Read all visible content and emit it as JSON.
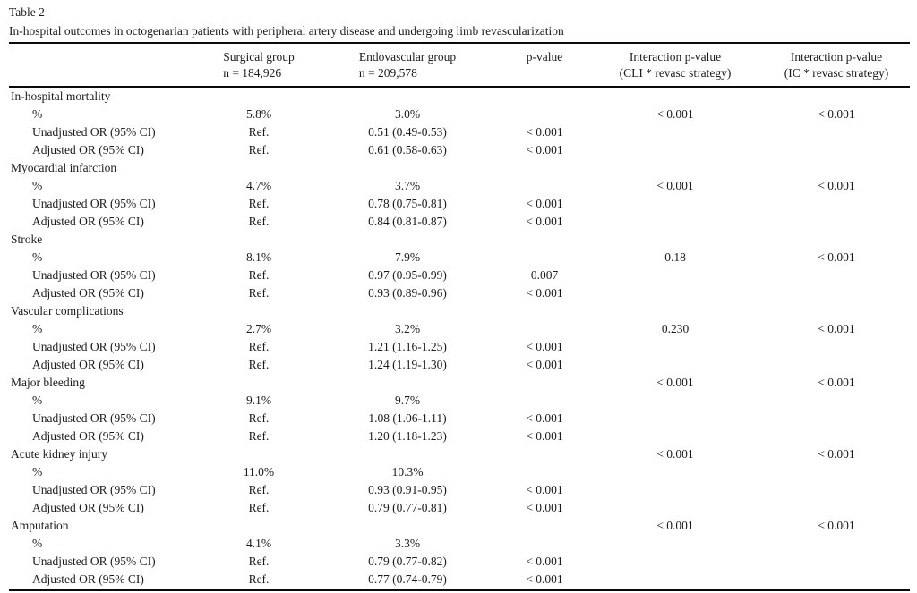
{
  "table": {
    "label": "Table 2",
    "caption": "In-hospital outcomes in octogenarian patients with peripheral artery disease and undergoing limb revascularization",
    "columns": [
      {
        "line1": "",
        "line2": ""
      },
      {
        "line1": "Surgical group",
        "line2": "n = 184,926"
      },
      {
        "line1": "Endovascular group",
        "line2": "n = 209,578"
      },
      {
        "line1": "p-value",
        "line2": ""
      },
      {
        "line1": "Interaction p-value",
        "line2": "(CLI * revasc strategy)"
      },
      {
        "line1": "Interaction p-value",
        "line2": "(IC * revasc strategy)"
      }
    ],
    "rows": [
      {
        "label": "In-hospital mortality",
        "indent": false,
        "cells": [
          "",
          "",
          "",
          "",
          ""
        ]
      },
      {
        "label": "%",
        "indent": true,
        "cells": [
          "5.8%",
          "3.0%",
          "",
          "< 0.001",
          "< 0.001"
        ]
      },
      {
        "label": "Unadjusted OR (95% CI)",
        "indent": true,
        "cells": [
          "Ref.",
          "0.51 (0.49-0.53)",
          "< 0.001",
          "",
          ""
        ]
      },
      {
        "label": "Adjusted OR (95% CI)",
        "indent": true,
        "cells": [
          "Ref.",
          "0.61 (0.58-0.63)",
          "< 0.001",
          "",
          ""
        ]
      },
      {
        "label": "Myocardial infarction",
        "indent": false,
        "cells": [
          "",
          "",
          "",
          "",
          ""
        ]
      },
      {
        "label": "%",
        "indent": true,
        "cells": [
          "4.7%",
          "3.7%",
          "",
          "< 0.001",
          "< 0.001"
        ]
      },
      {
        "label": "Unadjusted OR (95% CI)",
        "indent": true,
        "cells": [
          "Ref.",
          "0.78 (0.75-0.81)",
          "< 0.001",
          "",
          ""
        ]
      },
      {
        "label": "Adjusted OR (95% CI)",
        "indent": true,
        "cells": [
          "Ref.",
          "0.84 (0.81-0.87)",
          "< 0.001",
          "",
          ""
        ]
      },
      {
        "label": "Stroke",
        "indent": false,
        "cells": [
          "",
          "",
          "",
          "",
          ""
        ]
      },
      {
        "label": "%",
        "indent": true,
        "cells": [
          "8.1%",
          "7.9%",
          "",
          "0.18",
          "< 0.001"
        ]
      },
      {
        "label": "Unadjusted OR (95% CI)",
        "indent": true,
        "cells": [
          "Ref.",
          "0.97 (0.95-0.99)",
          "0.007",
          "",
          ""
        ]
      },
      {
        "label": "Adjusted OR (95% CI)",
        "indent": true,
        "cells": [
          "Ref.",
          "0.93 (0.89-0.96)",
          "< 0.001",
          "",
          ""
        ]
      },
      {
        "label": "Vascular complications",
        "indent": false,
        "cells": [
          "",
          "",
          "",
          "",
          ""
        ]
      },
      {
        "label": "%",
        "indent": true,
        "cells": [
          "2.7%",
          "3.2%",
          "",
          "0.230",
          "< 0.001"
        ]
      },
      {
        "label": "Unadjusted OR (95% CI)",
        "indent": true,
        "cells": [
          "Ref.",
          "1.21 (1.16-1.25)",
          "< 0.001",
          "",
          ""
        ]
      },
      {
        "label": "Adjusted OR (95% CI)",
        "indent": true,
        "cells": [
          "Ref.",
          "1.24 (1.19-1.30)",
          "< 0.001",
          "",
          ""
        ]
      },
      {
        "label": "Major bleeding",
        "indent": false,
        "cells": [
          "",
          "",
          "",
          "< 0.001",
          "< 0.001"
        ]
      },
      {
        "label": "%",
        "indent": true,
        "cells": [
          "9.1%",
          "9.7%",
          "",
          "",
          ""
        ]
      },
      {
        "label": "Unadjusted OR (95% CI)",
        "indent": true,
        "cells": [
          "Ref.",
          "1.08 (1.06-1.11)",
          "< 0.001",
          "",
          ""
        ]
      },
      {
        "label": "Adjusted OR (95% CI)",
        "indent": true,
        "cells": [
          "Ref.",
          "1.20 (1.18-1.23)",
          "< 0.001",
          "",
          ""
        ]
      },
      {
        "label": "Acute kidney injury",
        "indent": false,
        "cells": [
          "",
          "",
          "",
          "< 0.001",
          "< 0.001"
        ]
      },
      {
        "label": "%",
        "indent": true,
        "cells": [
          "11.0%",
          "10.3%",
          "",
          "",
          ""
        ]
      },
      {
        "label": "Unadjusted OR (95% CI)",
        "indent": true,
        "cells": [
          "Ref.",
          "0.93 (0.91-0.95)",
          "< 0.001",
          "",
          ""
        ]
      },
      {
        "label": "Adjusted OR (95% CI)",
        "indent": true,
        "cells": [
          "Ref.",
          "0.79 (0.77-0.81)",
          "< 0.001",
          "",
          ""
        ]
      },
      {
        "label": "Amputation",
        "indent": false,
        "cells": [
          "",
          "",
          "",
          "< 0.001",
          "< 0.001"
        ]
      },
      {
        "label": "%",
        "indent": true,
        "cells": [
          "4.1%",
          "3.3%",
          "",
          "",
          ""
        ]
      },
      {
        "label": "Unadjusted OR (95% CI)",
        "indent": true,
        "cells": [
          "Ref.",
          "0.79 (0.77-0.82)",
          "< 0.001",
          "",
          ""
        ]
      },
      {
        "label": "Adjusted OR (95% CI)",
        "indent": true,
        "cells": [
          "Ref.",
          "0.77 (0.74-0.79)",
          "< 0.001",
          "",
          ""
        ]
      }
    ]
  }
}
